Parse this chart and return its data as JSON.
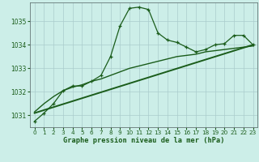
{
  "title": "Graphe pression niveau de la mer (hPa)",
  "background_color": "#cceee8",
  "line_color": "#1a5c1a",
  "grid_color": "#aacccc",
  "xlim": [
    -0.5,
    23.5
  ],
  "ylim": [
    1030.5,
    1035.8
  ],
  "yticks": [
    1031,
    1032,
    1033,
    1034,
    1035
  ],
  "xticks": [
    0,
    1,
    2,
    3,
    4,
    5,
    6,
    7,
    8,
    9,
    10,
    11,
    12,
    13,
    14,
    15,
    16,
    17,
    18,
    19,
    20,
    21,
    22,
    23
  ],
  "series1_x": [
    0,
    1,
    2,
    3,
    4,
    5,
    6,
    7,
    8,
    9,
    10,
    11,
    12,
    13,
    14,
    15,
    16,
    17,
    18,
    19,
    20,
    21,
    22,
    23
  ],
  "series1_y": [
    1030.75,
    1031.1,
    1031.5,
    1032.05,
    1032.25,
    1032.25,
    1032.45,
    1032.7,
    1033.5,
    1034.8,
    1035.55,
    1035.6,
    1035.5,
    1034.5,
    1034.2,
    1034.1,
    1033.9,
    1033.7,
    1033.8,
    1034.0,
    1034.05,
    1034.4,
    1034.4,
    1034.0
  ],
  "series2_x": [
    0,
    1,
    2,
    3,
    4,
    5,
    6,
    7,
    8,
    9,
    10,
    11,
    12,
    13,
    14,
    15,
    16,
    17,
    18,
    19,
    20,
    21,
    22,
    23
  ],
  "series2_y": [
    1031.15,
    1031.5,
    1031.8,
    1032.05,
    1032.2,
    1032.3,
    1032.45,
    1032.55,
    1032.7,
    1032.85,
    1033.0,
    1033.1,
    1033.2,
    1033.3,
    1033.4,
    1033.5,
    1033.55,
    1033.6,
    1033.7,
    1033.75,
    1033.8,
    1033.85,
    1033.9,
    1033.95
  ],
  "series3_x": [
    0,
    23
  ],
  "series3_y": [
    1031.1,
    1034.0
  ]
}
